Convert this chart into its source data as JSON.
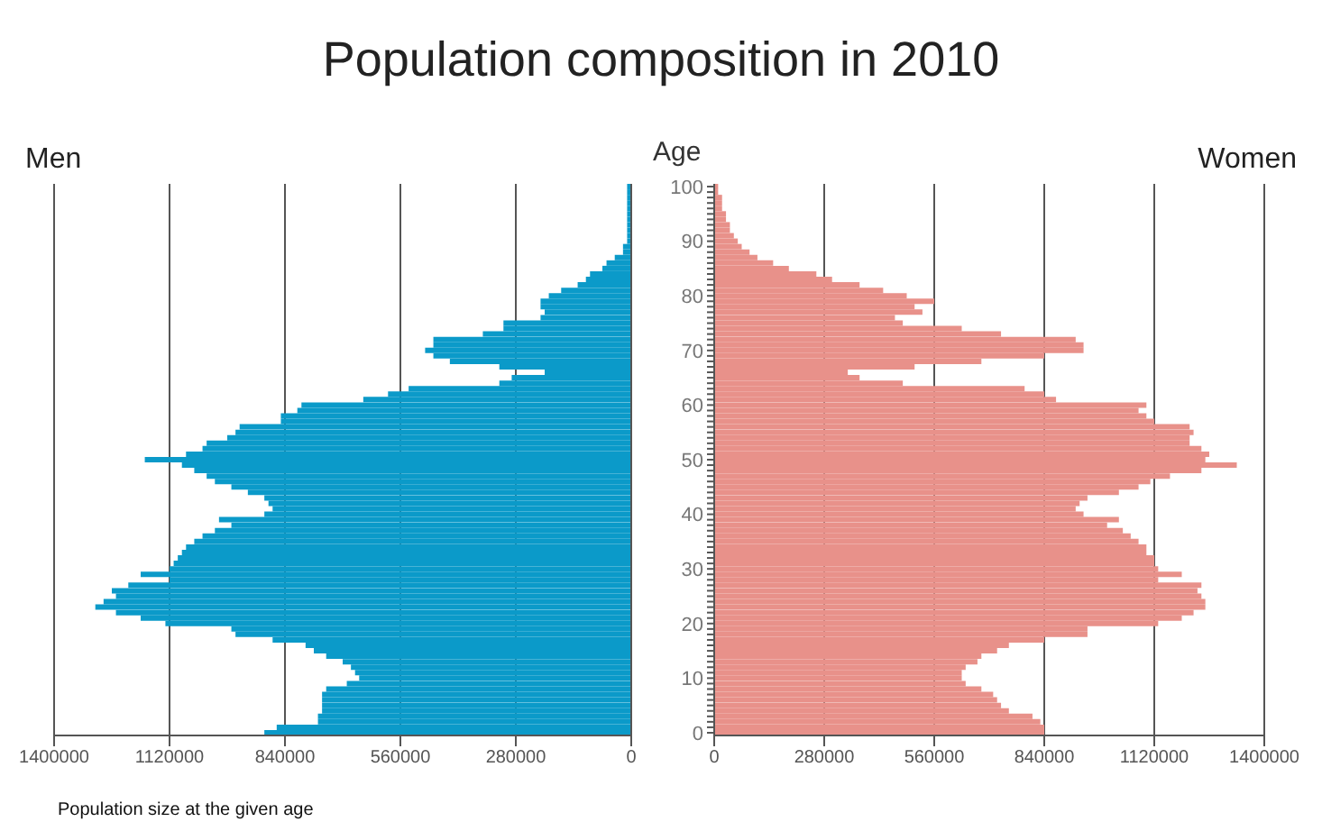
{
  "chart_data": [
    {
      "type": "bar",
      "orientation": "horizontal",
      "title": "Population composition in 2010",
      "annotations": [
        "Population size at the given age"
      ],
      "categories": [
        "100",
        null,
        null,
        null,
        null,
        null,
        null,
        null,
        null,
        null,
        "90",
        null,
        null,
        null,
        null,
        null,
        null,
        null,
        null,
        null,
        "80",
        null,
        null,
        null,
        null,
        null,
        null,
        null,
        null,
        null,
        "70",
        null,
        null,
        null,
        null,
        null,
        null,
        null,
        null,
        null,
        "60",
        null,
        null,
        null,
        null,
        null,
        null,
        null,
        null,
        null,
        "50",
        null,
        null,
        null,
        null,
        null,
        null,
        null,
        null,
        null,
        "40",
        null,
        null,
        null,
        null,
        null,
        null,
        null,
        null,
        null,
        "30",
        null,
        null,
        null,
        null,
        null,
        null,
        null,
        null,
        null,
        "20",
        null,
        null,
        null,
        null,
        null,
        null,
        null,
        null,
        null,
        "10",
        null,
        null,
        null,
        null,
        null,
        null,
        null,
        null,
        null,
        "0"
      ],
      "series": [
        {
          "name": "Men",
          "color": "#0b9ac9",
          "values": [
            10000,
            10000,
            10000,
            10000,
            10000,
            10000,
            10000,
            10000,
            10000,
            10000,
            10000,
            20000,
            20000,
            40000,
            60000,
            70000,
            100000,
            110000,
            130000,
            170000,
            200000,
            220000,
            220000,
            210000,
            220000,
            310000,
            310000,
            360000,
            480000,
            480000,
            500000,
            480000,
            440000,
            320000,
            210000,
            290000,
            320000,
            540000,
            590000,
            650000,
            800000,
            810000,
            850000,
            850000,
            950000,
            960000,
            980000,
            1030000,
            1040000,
            1080000,
            1180000,
            1090000,
            1060000,
            1030000,
            1010000,
            970000,
            930000,
            890000,
            880000,
            870000,
            890000,
            1000000,
            970000,
            1010000,
            1040000,
            1060000,
            1080000,
            1090000,
            1100000,
            1110000,
            1120000,
            1190000,
            1120000,
            1220000,
            1260000,
            1250000,
            1280000,
            1300000,
            1250000,
            1190000,
            1130000,
            970000,
            960000,
            870000,
            790000,
            770000,
            740000,
            700000,
            680000,
            670000,
            660000,
            690000,
            740000,
            750000,
            750000,
            750000,
            750000,
            760000,
            760000,
            860000,
            890000
          ]
        }
      ],
      "xlim": [
        1400000,
        0
      ],
      "xticks": [
        1400000,
        1120000,
        840000,
        560000,
        280000,
        0
      ],
      "grid": "x",
      "legend": false,
      "tick_labels": "x"
    },
    {
      "type": "bar",
      "orientation": "horizontal",
      "ylabel": "Age",
      "categories": [
        "100",
        null,
        null,
        null,
        null,
        null,
        null,
        null,
        null,
        null,
        "90",
        null,
        null,
        null,
        null,
        null,
        null,
        null,
        null,
        null,
        "80",
        null,
        null,
        null,
        null,
        null,
        null,
        null,
        null,
        null,
        "70",
        null,
        null,
        null,
        null,
        null,
        null,
        null,
        null,
        null,
        "60",
        null,
        null,
        null,
        null,
        null,
        null,
        null,
        null,
        null,
        "50",
        null,
        null,
        null,
        null,
        null,
        null,
        null,
        null,
        null,
        "40",
        null,
        null,
        null,
        null,
        null,
        null,
        null,
        null,
        null,
        "30",
        null,
        null,
        null,
        null,
        null,
        null,
        null,
        null,
        null,
        "20",
        null,
        null,
        null,
        null,
        null,
        null,
        null,
        null,
        null,
        "10",
        null,
        null,
        null,
        null,
        null,
        null,
        null,
        null,
        null,
        "0"
      ],
      "series": [
        {
          "name": "Women",
          "color": "#e8918a",
          "values": [
            10000,
            10000,
            20000,
            20000,
            20000,
            30000,
            30000,
            40000,
            40000,
            50000,
            60000,
            70000,
            90000,
            110000,
            150000,
            190000,
            260000,
            300000,
            370000,
            430000,
            490000,
            560000,
            510000,
            530000,
            460000,
            480000,
            630000,
            730000,
            920000,
            940000,
            940000,
            840000,
            680000,
            510000,
            340000,
            370000,
            480000,
            790000,
            840000,
            870000,
            1100000,
            1080000,
            1100000,
            1120000,
            1210000,
            1220000,
            1210000,
            1210000,
            1240000,
            1260000,
            1250000,
            1330000,
            1240000,
            1160000,
            1110000,
            1080000,
            1030000,
            950000,
            930000,
            920000,
            940000,
            1030000,
            1000000,
            1040000,
            1060000,
            1080000,
            1100000,
            1100000,
            1120000,
            1120000,
            1130000,
            1190000,
            1130000,
            1240000,
            1230000,
            1240000,
            1250000,
            1250000,
            1220000,
            1190000,
            1130000,
            950000,
            950000,
            840000,
            750000,
            720000,
            680000,
            670000,
            640000,
            630000,
            630000,
            640000,
            680000,
            710000,
            720000,
            730000,
            750000,
            810000,
            830000,
            840000,
            840000
          ]
        }
      ],
      "xlim": [
        0,
        1400000
      ],
      "xticks": [
        0,
        280000,
        560000,
        840000,
        1120000,
        1400000
      ],
      "grid": "x",
      "legend": false
    }
  ]
}
